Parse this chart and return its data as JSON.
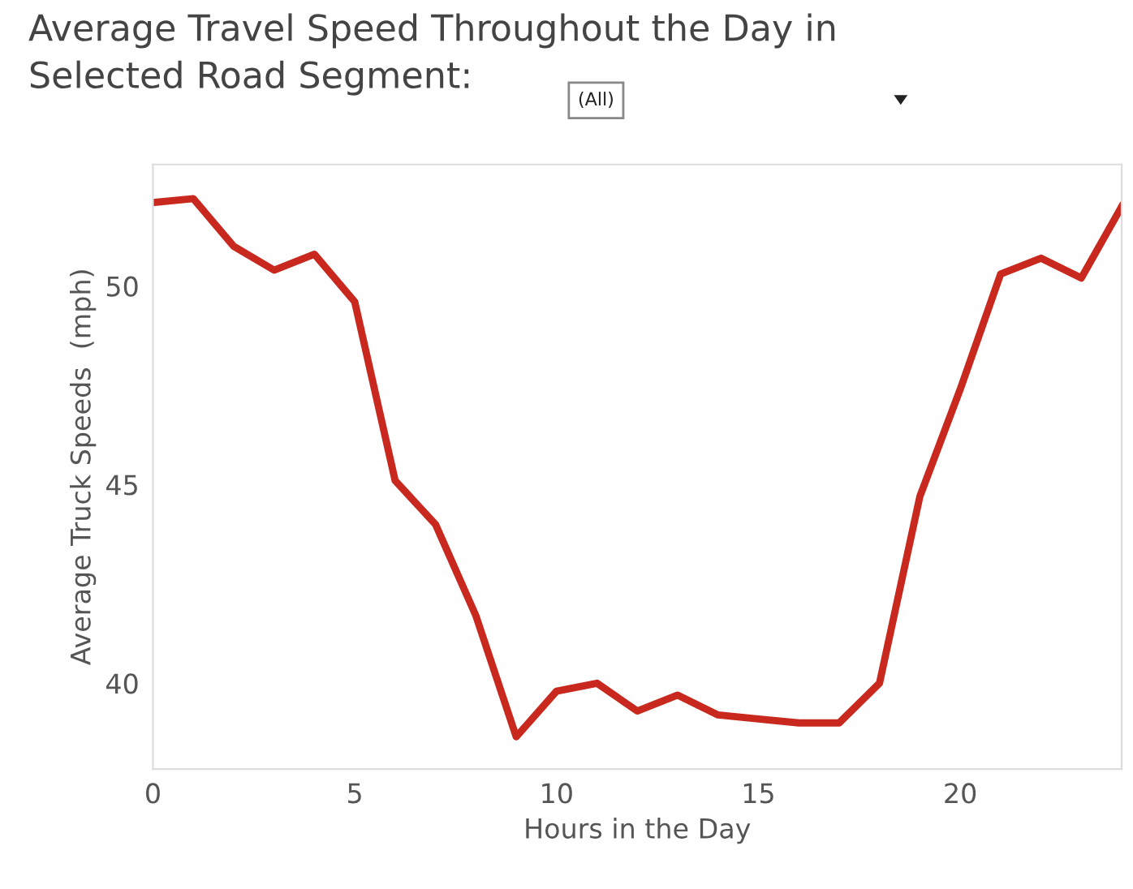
{
  "chart_data": {
    "type": "line",
    "title": "Average Travel Speed Throughout the Day in\nSelected Road Segment:",
    "xlabel": "Hours in the Day",
    "ylabel": "Average Truck Speeds  (mph)",
    "annotations": [
      "(All)"
    ],
    "x": [
      0,
      1,
      2,
      3,
      4,
      5,
      6,
      7,
      8,
      9,
      10,
      11,
      12,
      13,
      14,
      15,
      16,
      17,
      18,
      19,
      20,
      21,
      22,
      23,
      24
    ],
    "series": [
      {
        "values": [
          52.1,
          52.2,
          51.0,
          50.4,
          50.8,
          49.6,
          45.1,
          44.0,
          41.7,
          38.65,
          39.8,
          40.0,
          39.3,
          39.7,
          39.2,
          39.1,
          39.0,
          39.0,
          40.0,
          44.7,
          47.4,
          50.3,
          50.7,
          50.2,
          52.0
        ],
        "color": "#c8281e"
      }
    ],
    "xlim": [
      0,
      24
    ],
    "ylim": [
      37.84,
      53.06
    ],
    "xticks": [
      0,
      5,
      10,
      15,
      20
    ],
    "yticks": [
      40,
      45,
      50
    ],
    "grid": false,
    "legend": false,
    "marker": "none",
    "line_style": "solid"
  }
}
